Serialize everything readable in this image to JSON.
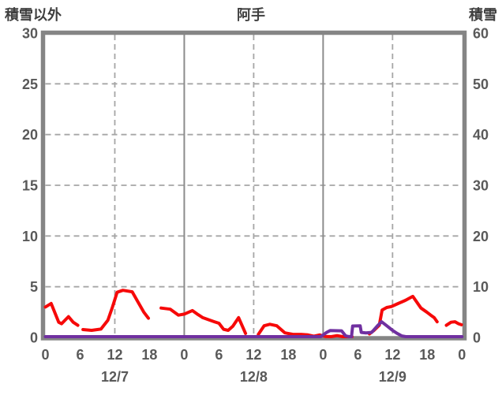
{
  "header": {
    "left_axis_title": "積雪以外",
    "chart_title": "阿手",
    "right_axis_title": "積雪"
  },
  "colors": {
    "red_series": "#f60909",
    "purple_series": "#7030a0",
    "frame": "#858585",
    "grid_dashed": "#a6a6a6",
    "day_separator": "#8c8c8c",
    "tick_text": "#595959",
    "header_text": "#3f3f3f"
  },
  "chart_data": {
    "type": "line",
    "title": "阿手",
    "left_axis": {
      "label": "積雪以外",
      "min": 0,
      "max": 30,
      "ticks": [
        0,
        5,
        10,
        15,
        20,
        25,
        30
      ]
    },
    "right_axis": {
      "label": "積雪",
      "min": 0,
      "max": 60,
      "ticks": [
        0,
        10,
        20,
        30,
        40,
        50,
        60
      ]
    },
    "x_axis": {
      "span_hours": 72,
      "tick_interval_hours": 6,
      "tick_labels": [
        "0",
        "6",
        "12",
        "18",
        "0",
        "6",
        "12",
        "18",
        "0",
        "6",
        "12",
        "18",
        "0"
      ],
      "date_labels": [
        "12/7",
        "12/8",
        "12/9"
      ],
      "date_center_hours": [
        12,
        36,
        60
      ]
    },
    "grid": {
      "h_dashed_left_values": [
        5,
        10,
        15,
        20,
        25
      ],
      "v_dashed_hours": [
        12,
        36,
        60
      ],
      "v_solid_hours": [
        24,
        48
      ]
    },
    "series": [
      {
        "name": "積雪以外",
        "color_key": "red_series",
        "axis": "left",
        "segments": [
          [
            [
              0,
              3.0
            ],
            [
              1,
              3.35
            ],
            [
              2.3,
              1.5
            ],
            [
              2.8,
              1.35
            ],
            [
              4,
              2.05
            ],
            [
              4.8,
              1.5
            ],
            [
              5.6,
              1.2
            ]
          ],
          [
            [
              6.5,
              0.78
            ],
            [
              8,
              0.7
            ],
            [
              9.6,
              0.82
            ],
            [
              10.8,
              1.7
            ],
            [
              11.6,
              3.0
            ],
            [
              12.4,
              4.45
            ],
            [
              13.4,
              4.65
            ],
            [
              15,
              4.5
            ],
            [
              16,
              3.5
            ],
            [
              17,
              2.5
            ],
            [
              17.8,
              1.9
            ]
          ],
          [
            [
              20,
              2.9
            ],
            [
              21.6,
              2.78
            ],
            [
              23,
              2.2
            ],
            [
              24,
              2.3
            ],
            [
              25.4,
              2.65
            ],
            [
              26.4,
              2.25
            ],
            [
              27.2,
              1.95
            ],
            [
              28.2,
              1.75
            ],
            [
              29.2,
              1.55
            ],
            [
              30,
              1.4
            ],
            [
              30.8,
              0.8
            ],
            [
              31.6,
              0.7
            ],
            [
              32.4,
              1.1
            ],
            [
              33.4,
              1.95
            ],
            [
              34.6,
              0.4
            ]
          ],
          [
            [
              36.8,
              0.3
            ],
            [
              37.8,
              1.15
            ],
            [
              38.8,
              1.3
            ],
            [
              40,
              1.15
            ],
            [
              41.4,
              0.45
            ],
            [
              42.8,
              0.3
            ],
            [
              44.2,
              0.3
            ],
            [
              45.4,
              0.25
            ],
            [
              46.4,
              0.12
            ],
            [
              47.4,
              0.25
            ],
            [
              48.4,
              0.1
            ],
            [
              49.4,
              0.06
            ],
            [
              50.4,
              0.18
            ],
            [
              51.4,
              0.05
            ],
            [
              53,
              0.06
            ]
          ],
          [
            [
              56,
              0.35
            ],
            [
              56.8,
              0.7
            ],
            [
              57.7,
              1.2
            ],
            [
              58.2,
              2.7
            ],
            [
              59,
              2.95
            ],
            [
              59.8,
              3.05
            ],
            [
              60.8,
              3.3
            ],
            [
              62.2,
              3.65
            ],
            [
              63.5,
              4.05
            ],
            [
              64.9,
              2.9
            ],
            [
              65.9,
              2.5
            ],
            [
              66.6,
              2.2
            ],
            [
              67.2,
              1.95
            ],
            [
              67.7,
              1.55
            ]
          ],
          [
            [
              69.3,
              1.2
            ],
            [
              70.1,
              1.5
            ],
            [
              70.8,
              1.55
            ],
            [
              71.4,
              1.35
            ],
            [
              71.9,
              1.25
            ]
          ]
        ]
      },
      {
        "name": "積雪",
        "color_key": "purple_series",
        "axis": "right",
        "segments": [
          [
            [
              0,
              0
            ],
            [
              47.6,
              0
            ],
            [
              48.6,
              1.0
            ],
            [
              49.2,
              1.35
            ],
            [
              51.2,
              1.3
            ],
            [
              51.9,
              0.3
            ],
            [
              52.5,
              0.05
            ],
            [
              52.9,
              0.1
            ],
            [
              53.1,
              2.25
            ],
            [
              54.4,
              2.3
            ],
            [
              54.6,
              1.0
            ],
            [
              55.4,
              0.9
            ],
            [
              56.4,
              1.0
            ],
            [
              57.4,
              2.3
            ],
            [
              58.1,
              3.1
            ],
            [
              59,
              2.3
            ],
            [
              60,
              1.4
            ],
            [
              60.8,
              0.8
            ],
            [
              61.6,
              0.3
            ],
            [
              62.3,
              0.05
            ],
            [
              72,
              0
            ]
          ]
        ]
      }
    ]
  }
}
